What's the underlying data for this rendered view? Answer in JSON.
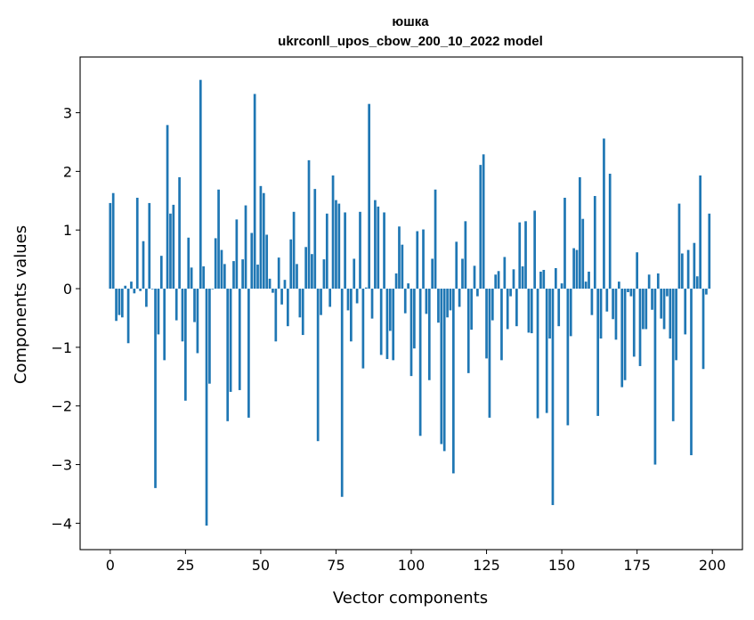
{
  "chart_data": {
    "type": "bar",
    "title_line1": "юшка",
    "title_line2": "ukrconll_upos_cbow_200_10_2022 model",
    "xlabel": "Vector components",
    "ylabel": "Components values",
    "xlim": [
      -10,
      210
    ],
    "ylim": [
      -4.45,
      3.95
    ],
    "xticks": [
      0,
      25,
      50,
      75,
      100,
      125,
      150,
      175,
      200
    ],
    "yticks": [
      -4,
      -3,
      -2,
      -1,
      0,
      1,
      2,
      3
    ],
    "xtick_labels": [
      "0",
      "25",
      "50",
      "75",
      "100",
      "125",
      "150",
      "175",
      "200"
    ],
    "ytick_labels": [
      "−4",
      "−3",
      "−2",
      "−1",
      "0",
      "1",
      "2",
      "3"
    ],
    "grid": false,
    "bar_color": "#1f77b4",
    "values": [
      1.46,
      1.63,
      -0.55,
      -0.45,
      -0.49,
      0.05,
      -0.93,
      0.12,
      -0.08,
      1.55,
      -0.04,
      0.81,
      -0.31,
      1.46,
      -0.01,
      -3.4,
      -0.78,
      0.56,
      -1.22,
      2.79,
      1.28,
      1.43,
      -0.54,
      1.9,
      -0.9,
      -1.91,
      0.87,
      0.36,
      -0.57,
      -1.1,
      3.56,
      0.38,
      -4.04,
      -1.62,
      -0.01,
      0.86,
      1.69,
      0.66,
      0.42,
      -2.26,
      -1.76,
      0.47,
      1.18,
      -1.73,
      0.5,
      1.42,
      -2.2,
      0.95,
      3.32,
      0.41,
      1.75,
      1.63,
      0.92,
      0.17,
      -0.07,
      -0.9,
      0.53,
      -0.27,
      0.15,
      -0.64,
      0.84,
      1.31,
      0.42,
      -0.49,
      -0.79,
      0.71,
      2.19,
      0.59,
      1.7,
      -2.6,
      -0.45,
      0.5,
      1.28,
      -0.31,
      1.93,
      1.51,
      1.45,
      -3.55,
      1.3,
      -0.37,
      -0.9,
      0.51,
      -0.25,
      1.31,
      -1.36,
      0.02,
      3.15,
      -0.51,
      1.51,
      1.4,
      -1.13,
      1.3,
      -1.2,
      -0.72,
      -1.22,
      0.26,
      1.06,
      0.75,
      -0.42,
      0.09,
      -1.49,
      -1.02,
      0.98,
      -2.51,
      1.01,
      -0.43,
      -1.56,
      0.51,
      1.69,
      -0.58,
      -2.65,
      -2.77,
      -0.49,
      -0.37,
      -3.15,
      0.8,
      -0.31,
      0.51,
      1.15,
      -1.44,
      -0.7,
      0.39,
      -0.13,
      2.11,
      2.29,
      -1.19,
      -2.2,
      -0.54,
      0.24,
      0.3,
      -1.22,
      0.54,
      -0.69,
      -0.13,
      0.33,
      -0.64,
      1.13,
      0.38,
      1.15,
      -0.75,
      -0.76,
      1.33,
      -2.21,
      0.29,
      0.32,
      -2.12,
      -0.85,
      -3.69,
      0.35,
      -0.64,
      0.09,
      1.55,
      -2.33,
      -0.81,
      0.69,
      0.66,
      1.9,
      1.19,
      0.12,
      0.29,
      -0.45,
      1.58,
      -2.17,
      -0.85,
      2.56,
      -0.39,
      1.96,
      -0.52,
      -0.87,
      0.12,
      -1.68,
      -1.56,
      -0.06,
      -0.13,
      -1.16,
      0.62,
      -1.32,
      -0.69,
      -0.69,
      0.24,
      -0.36,
      -3.0,
      0.26,
      -0.51,
      -0.69,
      -0.13,
      -0.85,
      -2.26,
      -1.22,
      1.45,
      0.6,
      -0.78,
      0.66,
      -2.84,
      0.78,
      0.21,
      1.93,
      -1.37,
      -0.1,
      1.28
    ]
  }
}
